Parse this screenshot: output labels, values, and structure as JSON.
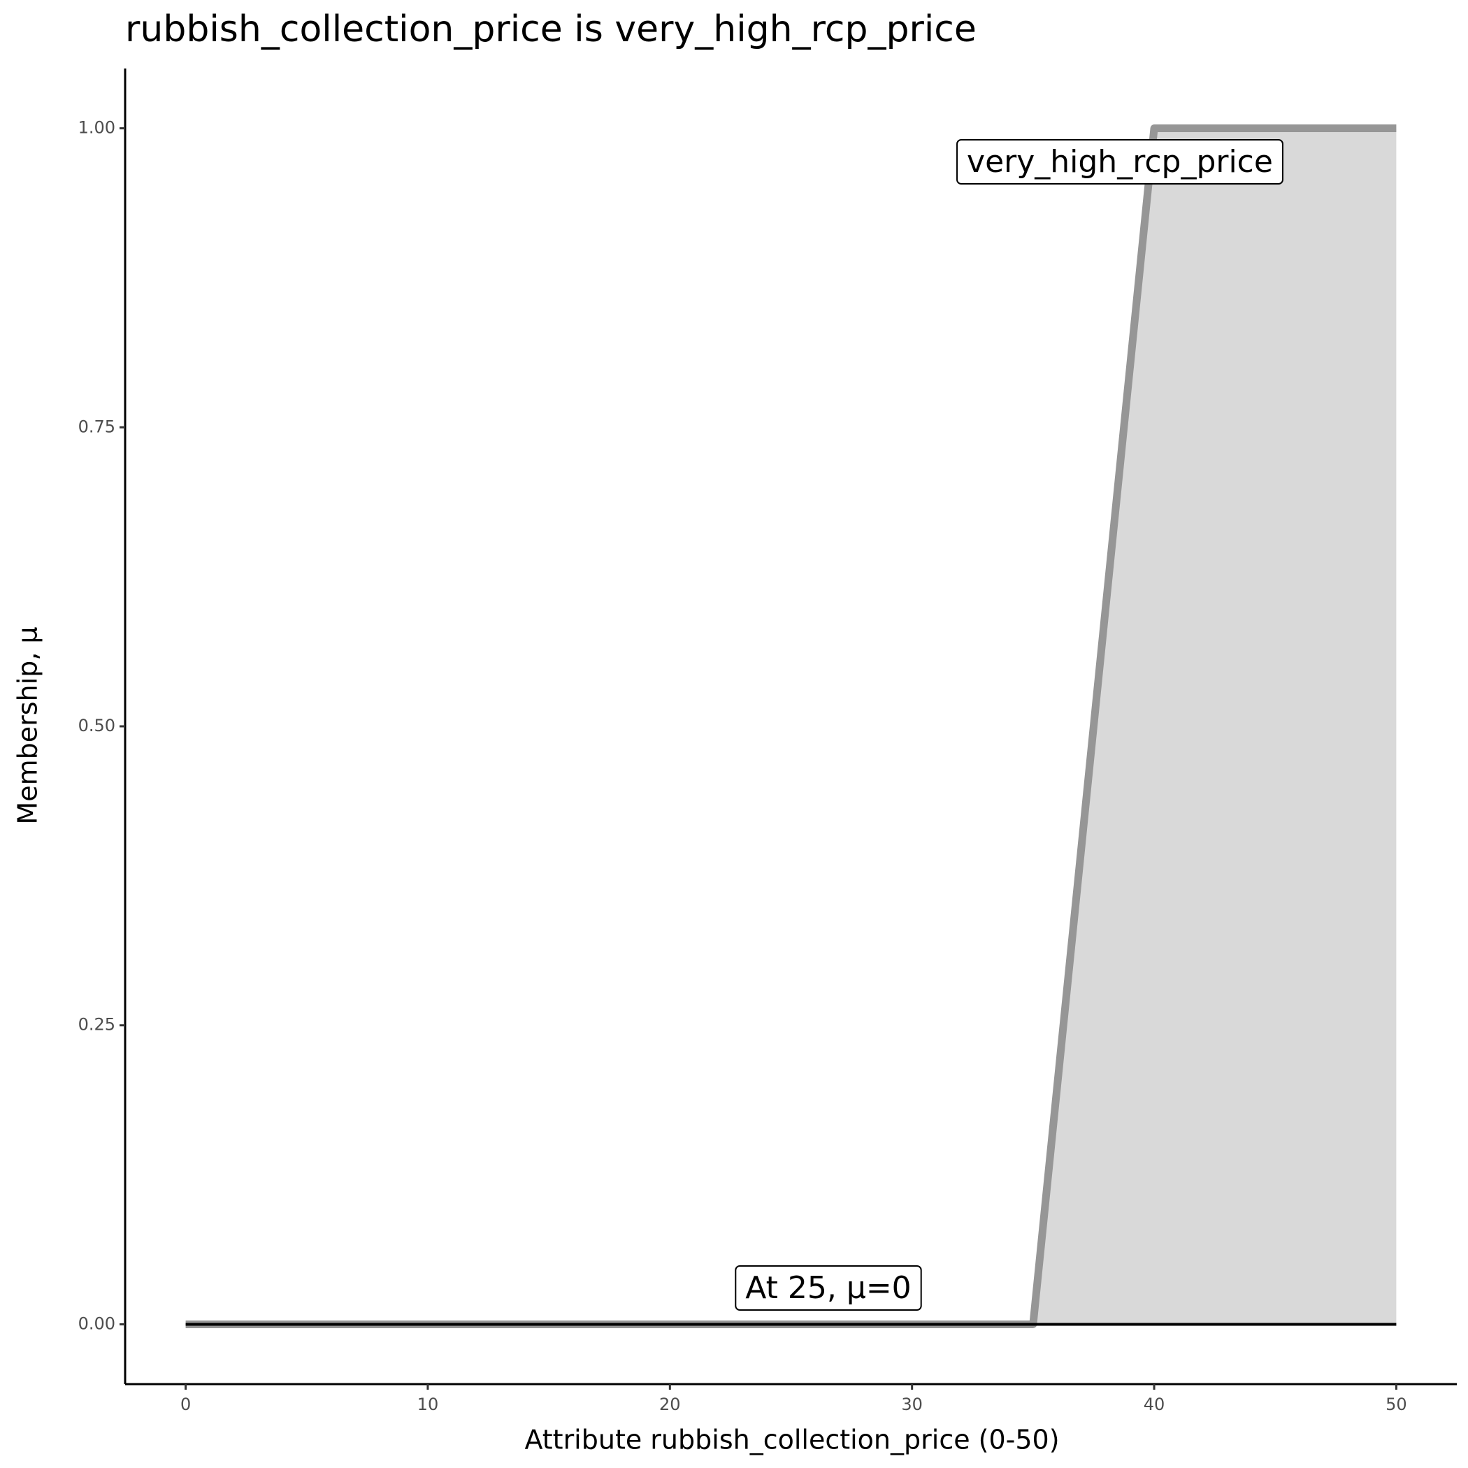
{
  "chart_data": {
    "type": "line",
    "title": "rubbish_collection_price is very_high_rcp_price",
    "x_label": "Attribute rubbish_collection_price (0-50)",
    "y_label": "Membership, μ",
    "series": [
      {
        "x": [
          0,
          35,
          40,
          50
        ],
        "values": [
          0,
          0,
          1,
          1
        ],
        "color": "#969696",
        "fill": "#d9d9d9"
      },
      {
        "x": [
          0,
          50
        ],
        "values": [
          0,
          0
        ],
        "color": "#000000"
      }
    ],
    "annotations": [
      "very_high_rcp_price",
      "At 25, μ=0"
    ],
    "xlim": [
      -2.5,
      52.5
    ],
    "xticks": [
      0,
      10,
      20,
      30,
      40,
      50
    ],
    "ylim": [
      -0.05,
      1.05
    ],
    "yticks": [
      {
        "value": 0,
        "label": "0.00"
      },
      {
        "value": 0.25,
        "label": "0.25"
      },
      {
        "value": 0.5,
        "label": "0.50"
      },
      {
        "value": 0.75,
        "label": "0.75"
      },
      {
        "value": 1,
        "label": "1.00"
      }
    ],
    "grid": false
  }
}
